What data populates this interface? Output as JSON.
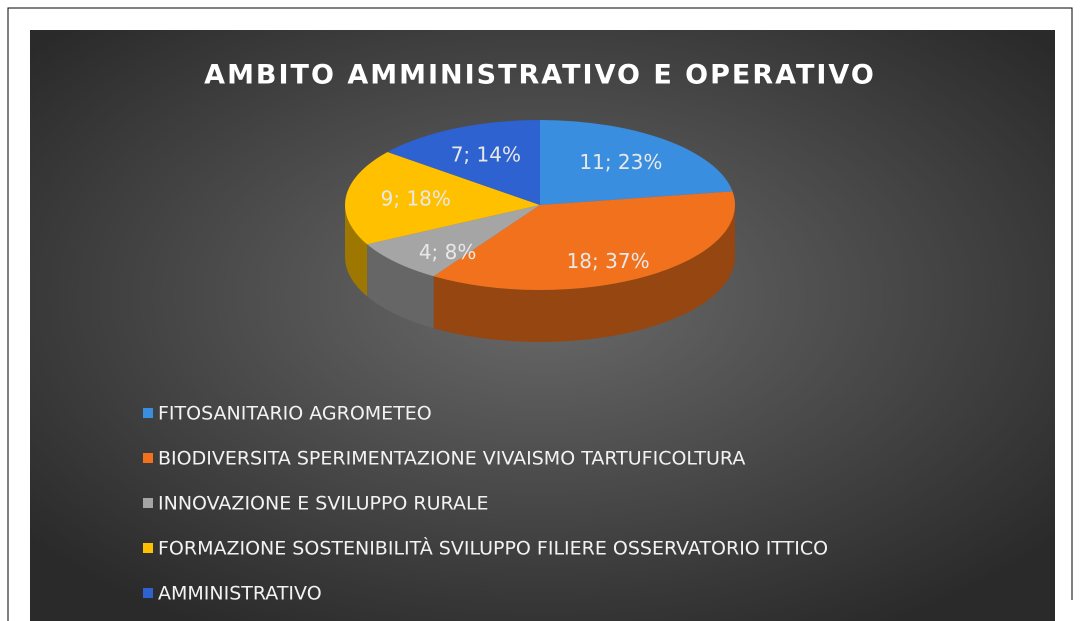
{
  "chart_data": {
    "type": "pie",
    "title": "AMBITO AMMINISTRATIVO E OPERATIVO",
    "categories": [
      "FITOSANITARIO AGROMETEO",
      "BIODIVERSITA SPERIMENTAZIONE VIVAISMO TARTUFICOLTURA",
      "INNOVAZIONE E SVILUPPO RURALE",
      "FORMAZIONE SOSTENIBILITÀ SVILUPPO FILIERE OSSERVATORIO ITTICO",
      "AMMINISTRATIVO"
    ],
    "values": [
      11,
      18,
      4,
      9,
      7
    ],
    "value_labels": [
      "11; 23%",
      "18; 37%",
      "4; 8%",
      "9; 18%",
      "7; 14%"
    ],
    "colors": [
      "#3a8ee0",
      "#f2711c",
      "#a5a5a5",
      "#ffc000",
      "#2d62d0"
    ],
    "legend": "bottom"
  }
}
